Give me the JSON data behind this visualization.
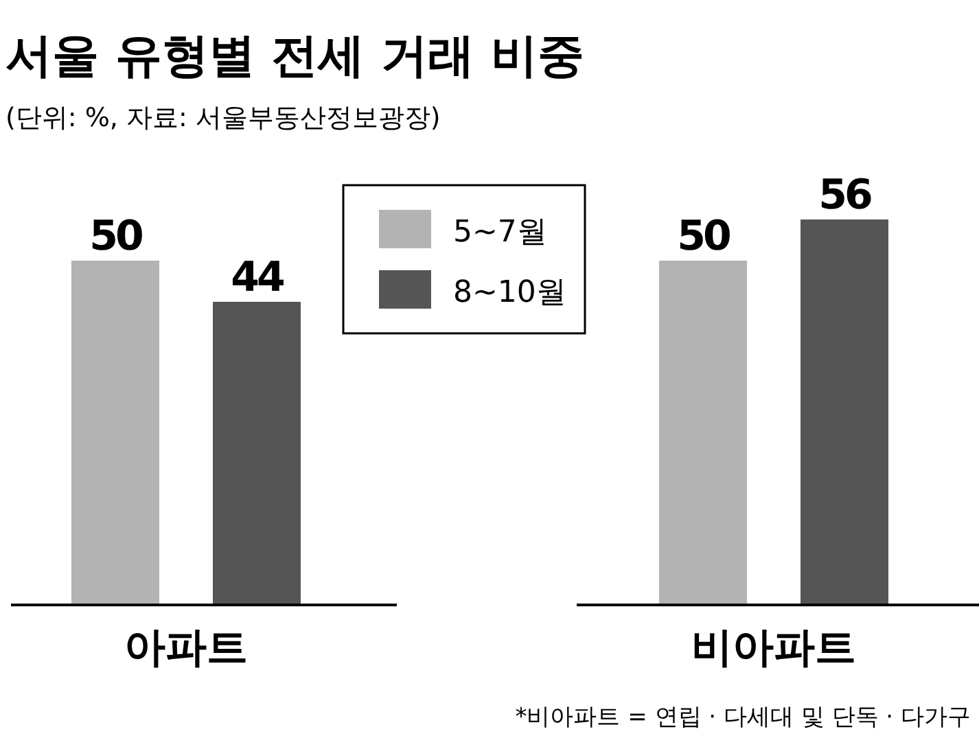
{
  "chart_data": {
    "type": "bar",
    "title": "서울 유형별 전세 거래 비중",
    "subtitle": "(단위: %, 자료: 서울부동산정보광장)",
    "categories": [
      "아파트",
      "비아파트"
    ],
    "series": [
      {
        "name": "5~7월",
        "color": "#b3b3b3",
        "values": [
          50,
          50
        ]
      },
      {
        "name": "8~10월",
        "color": "#555555",
        "values": [
          44,
          56
        ]
      }
    ],
    "data_labels": true,
    "legend": "top",
    "annotations": [
      "*비아파트 = 연립 · 다세대 및 단독 · 다가구"
    ]
  }
}
